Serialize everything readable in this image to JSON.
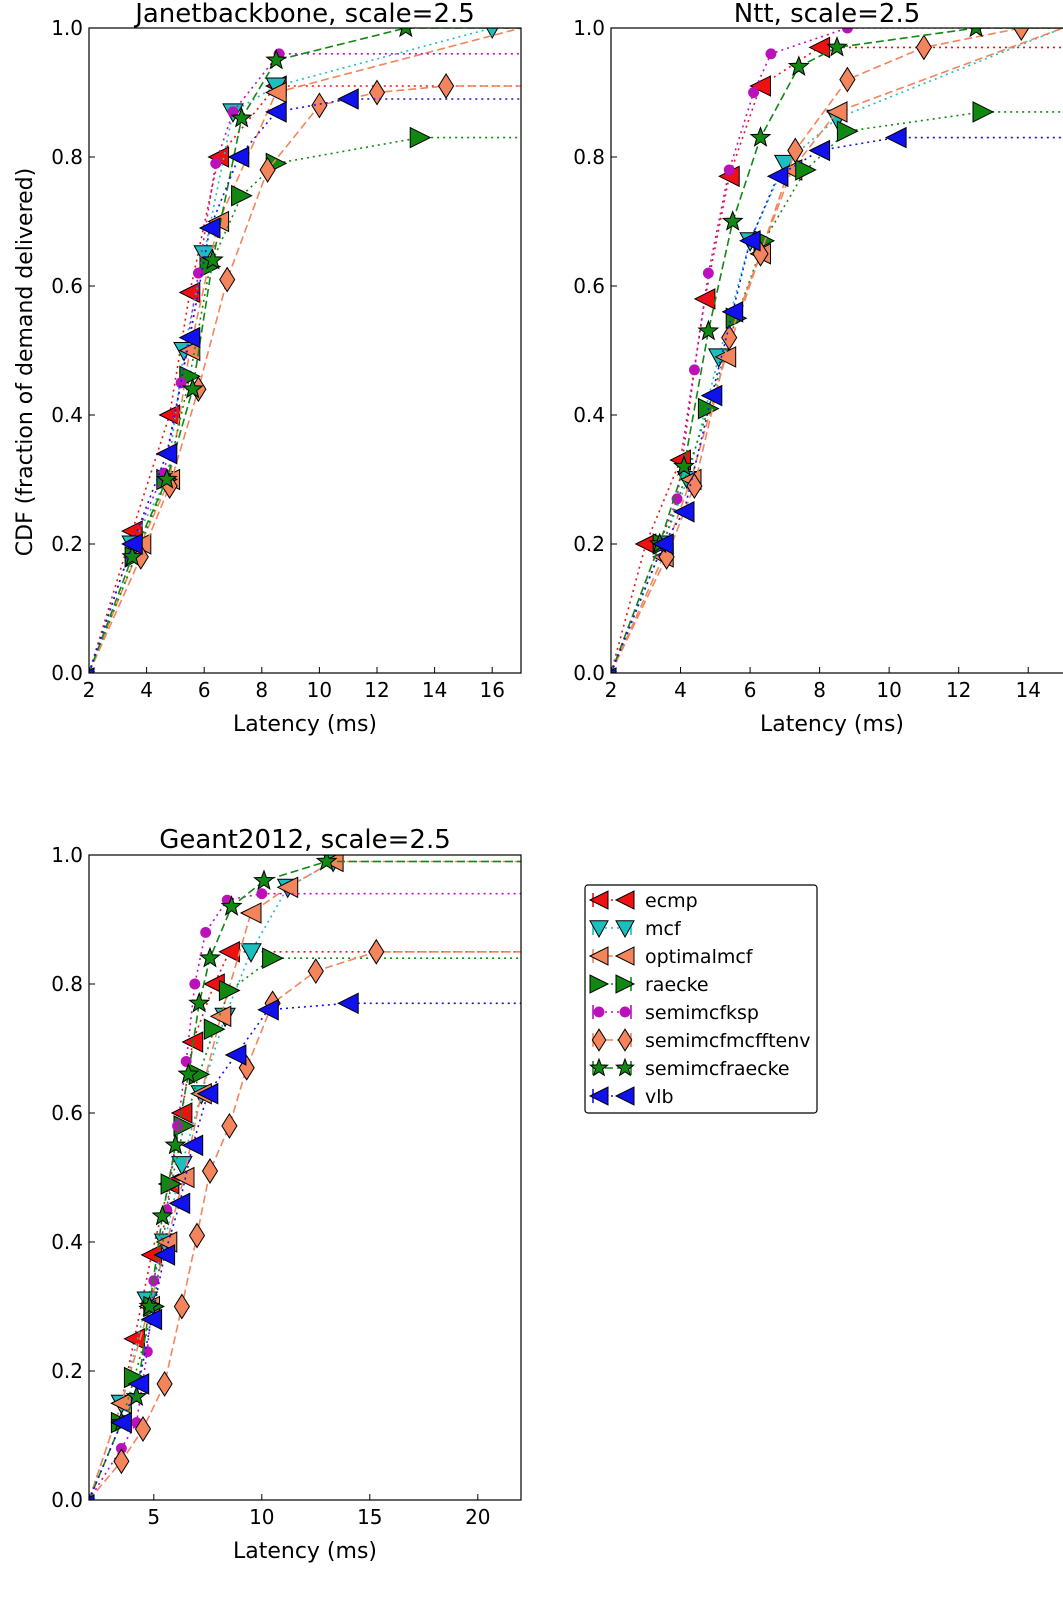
{
  "y_axis_label": "CDF (fraction of demand delivered)",
  "legend": {
    "entries": [
      {
        "name": "ecmp",
        "color": "#ee1111",
        "marker": "triangle-left",
        "dash": "dotted"
      },
      {
        "name": "mcf",
        "color": "#1bbfbf",
        "marker": "triangle-down",
        "dash": "dotted"
      },
      {
        "name": "optimalmcf",
        "color": "#f4845c",
        "marker": "triangle-left",
        "dash": "dashed"
      },
      {
        "name": "raecke",
        "color": "#118811",
        "marker": "triangle-right",
        "dash": "dotted"
      },
      {
        "name": "semimcfksp",
        "color": "#bb11bb",
        "marker": "circle",
        "dash": "dotted"
      },
      {
        "name": "semimcfmcfftenv",
        "color": "#f4845c",
        "marker": "diamond",
        "dash": "dashed"
      },
      {
        "name": "semimcfraecke",
        "color": "#118811",
        "marker": "star",
        "dash": "dashed"
      },
      {
        "name": "vlb",
        "color": "#1111ee",
        "marker": "triangle-left",
        "dash": "dotted"
      }
    ]
  },
  "chart_data": [
    {
      "type": "line",
      "title": "Janetbackbone, scale=2.5",
      "xlabel": "Latency (ms)",
      "ylabel": "CDF (fraction of demand delivered)",
      "xlim": [
        2,
        17
      ],
      "ylim": [
        0,
        1.0
      ],
      "xticks": [
        2,
        4,
        6,
        8,
        10,
        12,
        14,
        16
      ],
      "yticks": [
        0.0,
        0.2,
        0.4,
        0.6,
        0.8,
        1.0
      ],
      "series": [
        {
          "name": "ecmp",
          "x": [
            2,
            3.5,
            4.8,
            5.5,
            6.5,
            8.5,
            17
          ],
          "y": [
            0.0,
            0.22,
            0.4,
            0.59,
            0.8,
            0.91,
            0.91
          ]
        },
        {
          "name": "mcf",
          "x": [
            2,
            3.5,
            4.7,
            5.3,
            6.0,
            7.0,
            8.5,
            16,
            17
          ],
          "y": [
            0.0,
            0.2,
            0.3,
            0.5,
            0.65,
            0.87,
            0.91,
            1.0,
            1.0
          ]
        },
        {
          "name": "optimalmcf",
          "x": [
            2,
            3.8,
            4.8,
            5.5,
            6.5,
            8.5,
            17
          ],
          "y": [
            0.0,
            0.2,
            0.3,
            0.5,
            0.7,
            0.9,
            1.0
          ]
        },
        {
          "name": "raecke",
          "x": [
            2,
            3.6,
            4.7,
            5.5,
            6.2,
            7.3,
            8.5,
            13.5,
            17
          ],
          "y": [
            0.0,
            0.18,
            0.3,
            0.46,
            0.63,
            0.74,
            0.79,
            0.83,
            0.83
          ]
        },
        {
          "name": "semimcfksp",
          "x": [
            2,
            3.5,
            4.6,
            5.2,
            5.8,
            6.4,
            7.0,
            8.6,
            17
          ],
          "y": [
            0.0,
            0.2,
            0.31,
            0.45,
            0.62,
            0.79,
            0.87,
            0.96,
            0.96
          ]
        },
        {
          "name": "semimcfmcfftenv",
          "x": [
            2,
            3.8,
            4.8,
            5.8,
            6.8,
            8.2,
            10,
            12,
            14.4,
            17
          ],
          "y": [
            0.0,
            0.18,
            0.29,
            0.44,
            0.61,
            0.78,
            0.88,
            0.9,
            0.91,
            0.91
          ]
        },
        {
          "name": "semimcfraecke",
          "x": [
            2,
            3.5,
            4.7,
            5.6,
            6.3,
            7.3,
            8.5,
            13,
            17
          ],
          "y": [
            0.0,
            0.18,
            0.3,
            0.44,
            0.64,
            0.86,
            0.95,
            1.0,
            1.0
          ]
        },
        {
          "name": "vlb",
          "x": [
            2,
            3.5,
            4.7,
            5.5,
            6.2,
            7.2,
            8.5,
            11,
            17
          ],
          "y": [
            0.0,
            0.2,
            0.34,
            0.52,
            0.69,
            0.8,
            0.87,
            0.89,
            0.89
          ]
        }
      ]
    },
    {
      "type": "line",
      "title": "Ntt, scale=2.5",
      "xlabel": "Latency (ms)",
      "ylabel": "",
      "xlim": [
        2,
        15
      ],
      "ylim": [
        0,
        1.0
      ],
      "xticks": [
        2,
        4,
        6,
        8,
        10,
        12,
        14
      ],
      "yticks": [
        0.0,
        0.2,
        0.4,
        0.6,
        0.8,
        1.0
      ],
      "series": [
        {
          "name": "ecmp",
          "x": [
            2,
            3.0,
            4.0,
            4.7,
            5.4,
            6.3,
            8.0,
            15
          ],
          "y": [
            0.0,
            0.2,
            0.33,
            0.58,
            0.77,
            0.91,
            0.97,
            0.97
          ]
        },
        {
          "name": "mcf",
          "x": [
            2,
            3.5,
            4.2,
            5.1,
            6.0,
            7.0,
            8.5,
            15
          ],
          "y": [
            0.0,
            0.2,
            0.3,
            0.49,
            0.67,
            0.79,
            0.86,
            1.0
          ]
        },
        {
          "name": "optimalmcf",
          "x": [
            2,
            3.5,
            4.3,
            5.3,
            6.3,
            7.2,
            8.5,
            15
          ],
          "y": [
            0.0,
            0.18,
            0.3,
            0.49,
            0.65,
            0.78,
            0.87,
            1.0
          ]
        },
        {
          "name": "raecke",
          "x": [
            2,
            3.5,
            4.8,
            5.6,
            6.4,
            7.6,
            8.8,
            12.7,
            15
          ],
          "y": [
            0.0,
            0.2,
            0.41,
            0.55,
            0.67,
            0.78,
            0.84,
            0.87,
            0.87
          ]
        },
        {
          "name": "semimcfksp",
          "x": [
            2,
            3.4,
            3.9,
            4.4,
            4.8,
            5.4,
            6.1,
            6.6,
            8.8,
            15
          ],
          "y": [
            0.0,
            0.2,
            0.27,
            0.47,
            0.62,
            0.78,
            0.9,
            0.96,
            1.0,
            1.0
          ]
        },
        {
          "name": "semimcfmcfftenv",
          "x": [
            2,
            3.6,
            4.4,
            5.4,
            6.3,
            7.3,
            8.8,
            11,
            13.8,
            15
          ],
          "y": [
            0.0,
            0.18,
            0.29,
            0.52,
            0.65,
            0.81,
            0.92,
            0.97,
            1.0,
            1.0
          ]
        },
        {
          "name": "semimcfraecke",
          "x": [
            2,
            3.4,
            4.1,
            4.8,
            5.5,
            6.3,
            7.4,
            8.5,
            12.5,
            15
          ],
          "y": [
            0.0,
            0.2,
            0.32,
            0.53,
            0.7,
            0.83,
            0.94,
            0.97,
            1.0,
            1.0
          ]
        },
        {
          "name": "vlb",
          "x": [
            2,
            3.5,
            4.1,
            4.9,
            5.5,
            6.0,
            6.8,
            8.0,
            10.2,
            15
          ],
          "y": [
            0.0,
            0.2,
            0.25,
            0.43,
            0.56,
            0.67,
            0.77,
            0.81,
            0.83,
            0.83
          ]
        }
      ]
    },
    {
      "type": "line",
      "title": "Geant2012, scale=2.5",
      "xlabel": "Latency (ms)",
      "ylabel": "",
      "xlim": [
        2,
        22
      ],
      "ylim": [
        0,
        1.0
      ],
      "xticks": [
        5,
        10,
        15,
        20
      ],
      "yticks": [
        0.0,
        0.2,
        0.4,
        0.6,
        0.8,
        1.0
      ],
      "series": [
        {
          "name": "ecmp",
          "x": [
            2,
            3.5,
            4.1,
            4.9,
            5.7,
            6.3,
            6.8,
            7.8,
            8.5,
            22
          ],
          "y": [
            0.0,
            0.15,
            0.25,
            0.38,
            0.49,
            0.6,
            0.71,
            0.8,
            0.85,
            0.85
          ]
        },
        {
          "name": "mcf",
          "x": [
            2,
            3.5,
            4.7,
            5.5,
            6.3,
            7.2,
            8.3,
            9.5,
            11.2,
            13.3,
            22
          ],
          "y": [
            0.0,
            0.15,
            0.31,
            0.4,
            0.52,
            0.63,
            0.75,
            0.85,
            0.95,
            0.99,
            0.99
          ]
        },
        {
          "name": "optimalmcf",
          "x": [
            2,
            3.5,
            4.8,
            5.6,
            6.4,
            7.2,
            8.1,
            9.5,
            11.2,
            13.3,
            22
          ],
          "y": [
            0.0,
            0.15,
            0.3,
            0.4,
            0.5,
            0.63,
            0.75,
            0.91,
            0.95,
            0.99,
            0.99
          ]
        },
        {
          "name": "raecke",
          "x": [
            2,
            3.5,
            4.1,
            5.0,
            5.8,
            6.4,
            7.1,
            7.8,
            8.5,
            10.5,
            22
          ],
          "y": [
            0.0,
            0.12,
            0.19,
            0.3,
            0.49,
            0.58,
            0.66,
            0.73,
            0.79,
            0.84,
            0.84
          ]
        },
        {
          "name": "semimcfksp",
          "x": [
            2,
            3.5,
            4.2,
            4.7,
            5.0,
            5.6,
            6.1,
            6.5,
            6.9,
            7.4,
            8.4,
            10,
            22
          ],
          "y": [
            0.0,
            0.08,
            0.12,
            0.23,
            0.34,
            0.45,
            0.58,
            0.68,
            0.8,
            0.88,
            0.93,
            0.94,
            0.94
          ]
        },
        {
          "name": "semimcfmcfftenv",
          "x": [
            2,
            3.5,
            4.5,
            5.5,
            6.3,
            7.0,
            7.6,
            8.5,
            9.3,
            10.5,
            12.5,
            15.3,
            22
          ],
          "y": [
            0.0,
            0.06,
            0.11,
            0.18,
            0.3,
            0.41,
            0.51,
            0.58,
            0.67,
            0.77,
            0.82,
            0.85,
            0.85
          ]
        },
        {
          "name": "semimcfraecke",
          "x": [
            2,
            3.5,
            4.2,
            4.8,
            5.4,
            6.0,
            6.6,
            7.1,
            7.6,
            8.6,
            10.1,
            13.0,
            22
          ],
          "y": [
            0.0,
            0.12,
            0.16,
            0.3,
            0.44,
            0.55,
            0.66,
            0.77,
            0.84,
            0.92,
            0.96,
            0.99,
            0.99
          ]
        },
        {
          "name": "vlb",
          "x": [
            2,
            3.5,
            4.3,
            4.9,
            5.5,
            6.2,
            6.8,
            7.5,
            8.8,
            10.3,
            14,
            22
          ],
          "y": [
            0.0,
            0.12,
            0.18,
            0.28,
            0.38,
            0.46,
            0.55,
            0.63,
            0.69,
            0.76,
            0.77,
            0.77
          ]
        }
      ]
    }
  ]
}
